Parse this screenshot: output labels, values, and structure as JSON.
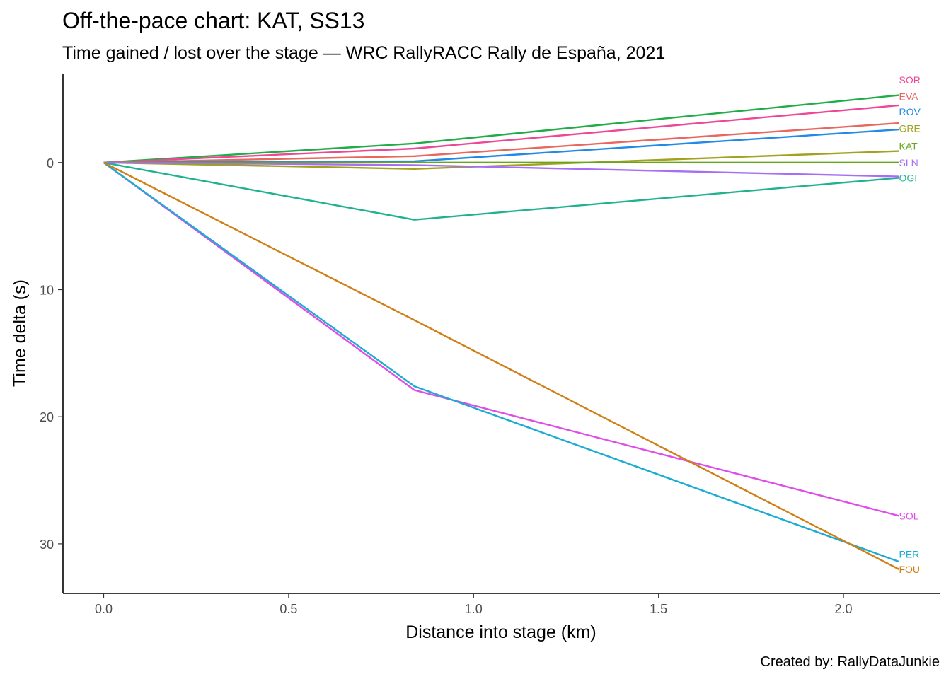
{
  "chart_data": {
    "type": "line",
    "title": "Off-the-pace chart: KAT, SS13",
    "subtitle": "Time gained / lost over the stage — WRC RallyRACC Rally de España, 2021",
    "xlabel": "Distance into stage (km)",
    "ylabel": "Time delta (s)",
    "caption": "Created by: RallyDataJunkie",
    "xlim": [
      -0.11,
      2.26
    ],
    "ylim": [
      -7.0,
      33.9
    ],
    "y_reversed": true,
    "grid": false,
    "legend": "none (series labelled at line ends)",
    "x_ticks": [
      0.0,
      0.5,
      1.0,
      1.5,
      2.0
    ],
    "x_tick_labels": [
      "0.0",
      "0.5",
      "1.0",
      "1.5",
      "2.0"
    ],
    "y_ticks": [
      0,
      10,
      20,
      30
    ],
    "y_tick_labels": [
      "0",
      "10",
      "20",
      "30"
    ],
    "x": [
      0,
      0.84,
      2.15
    ],
    "series": [
      {
        "name": "SOR",
        "color": "#20ac47",
        "values": [
          0,
          -1.5,
          -5.3
        ]
      },
      {
        "name": "EVA",
        "color": "#ee4795",
        "values": [
          0,
          -1.1,
          -4.5
        ]
      },
      {
        "name": "ROV",
        "color": "#e8675f",
        "values": [
          0,
          -0.5,
          -3.1
        ]
      },
      {
        "name": "GRE",
        "color": "#218ae6",
        "values": [
          0,
          -0.1,
          -2.6
        ]
      },
      {
        "name": "KAT",
        "color": "#a3a11d",
        "values": [
          0,
          0.5,
          -0.9
        ]
      },
      {
        "name": "SLN",
        "color": "#66a71a",
        "values": [
          0,
          0,
          0
        ]
      },
      {
        "name": "OGI",
        "color": "#a56ef5",
        "values": [
          0,
          0.2,
          1.1
        ]
      },
      {
        "name": "OGI-line",
        "color": "#20b290",
        "values": [
          0,
          4.5,
          1.2
        ]
      },
      {
        "name": "SOL",
        "color": "#e04ce8",
        "values": [
          0,
          17.9,
          27.8
        ]
      },
      {
        "name": "PER",
        "color": "#1aacd3",
        "values": [
          0,
          17.6,
          31.4
        ]
      },
      {
        "name": "FOU",
        "color": "#cf7f15",
        "values": [
          0,
          12.4,
          32.0
        ]
      }
    ],
    "end_labels": [
      {
        "text": "SOR",
        "color": "#ee4795",
        "y": -6.5
      },
      {
        "text": "EVA",
        "color": "#e8675f",
        "y": -5.2
      },
      {
        "text": "ROV",
        "color": "#218ae6",
        "y": -4.0
      },
      {
        "text": "GRE",
        "color": "#a3a11d",
        "y": -2.7
      },
      {
        "text": "KAT",
        "color": "#66a71a",
        "y": -1.3
      },
      {
        "text": "SLN",
        "color": "#a56ef5",
        "y": 0.0
      },
      {
        "text": "OGI",
        "color": "#20b290",
        "y": 1.2
      },
      {
        "text": "SOL",
        "color": "#e04ce8",
        "y": 27.8
      },
      {
        "text": "PER",
        "color": "#1aacd3",
        "y": 30.8
      },
      {
        "text": "FOU",
        "color": "#cf7f15",
        "y": 32.0
      }
    ]
  }
}
